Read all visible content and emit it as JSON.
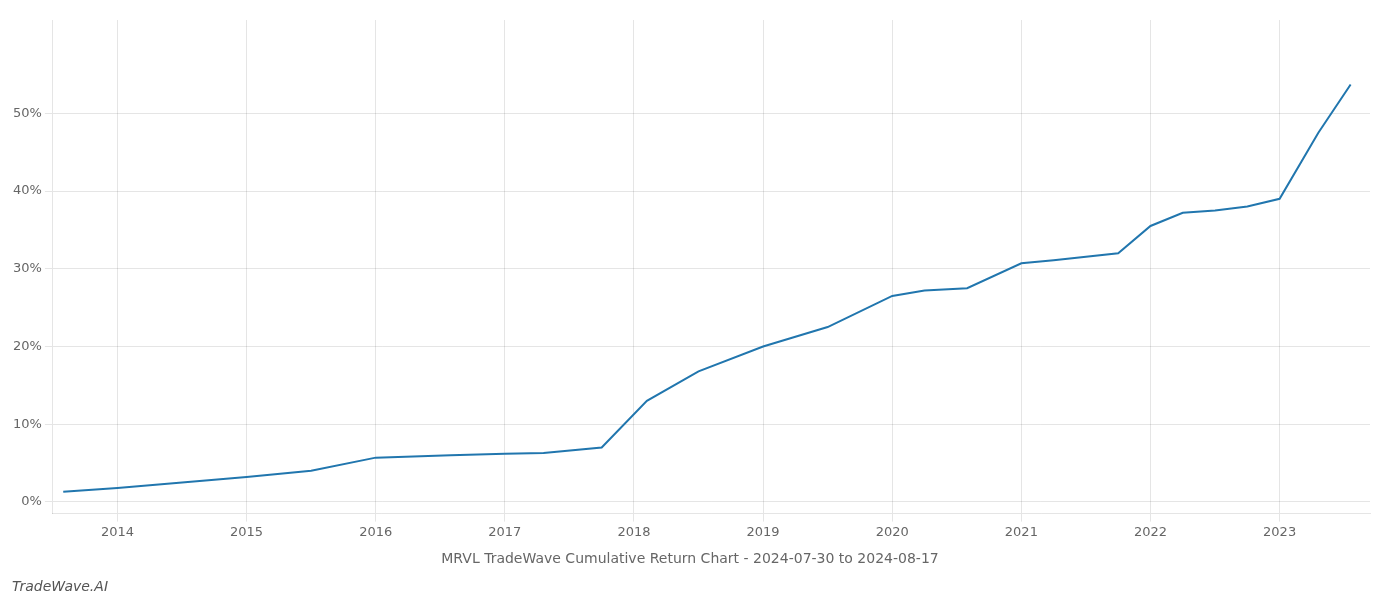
{
  "chart_data": {
    "type": "line",
    "title": "MRVL TradeWave Cumulative Return Chart - 2024-07-30 to 2024-08-17",
    "annotations": [
      "TradeWave.AI"
    ],
    "x": [
      2013.58,
      2014.0,
      2014.5,
      2015.0,
      2015.5,
      2016.0,
      2016.58,
      2017.0,
      2017.3,
      2017.75,
      2018.1,
      2018.5,
      2019.0,
      2019.5,
      2020.0,
      2020.25,
      2020.58,
      2021.0,
      2021.25,
      2021.75,
      2022.0,
      2022.25,
      2022.5,
      2022.75,
      2023.0,
      2023.3,
      2023.55
    ],
    "values": [
      0.013,
      0.018,
      0.025,
      0.032,
      0.04,
      0.057,
      0.06,
      0.062,
      0.063,
      0.07,
      0.13,
      0.168,
      0.2,
      0.225,
      0.265,
      0.272,
      0.275,
      0.307,
      0.311,
      0.32,
      0.355,
      0.372,
      0.375,
      0.38,
      0.39,
      0.475,
      0.537
    ],
    "color": "#2176ae",
    "xlim": [
      2013.5,
      2023.7
    ],
    "ylim": [
      -0.015,
      0.62
    ],
    "xticks": [
      2014,
      2015,
      2016,
      2017,
      2018,
      2019,
      2020,
      2021,
      2022,
      2023
    ],
    "yticks": [
      {
        "value": 0.0,
        "label": "0%"
      },
      {
        "value": 0.1,
        "label": "10%"
      },
      {
        "value": 0.2,
        "label": "20%"
      },
      {
        "value": 0.3,
        "label": "30%"
      },
      {
        "value": 0.4,
        "label": "40%"
      },
      {
        "value": 0.5,
        "label": "50%"
      }
    ],
    "grid": true
  }
}
